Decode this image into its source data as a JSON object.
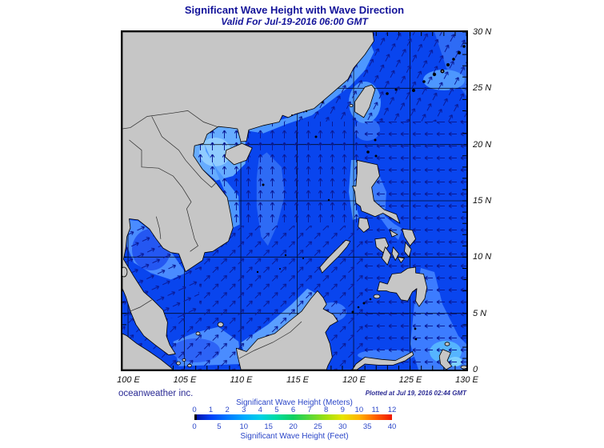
{
  "title": "Significant Wave Height with Wave Direction",
  "subtitle": "Valid For Jul-19-2016 06:00 GMT",
  "map": {
    "lon_labels": [
      "100 E",
      "105 E",
      "110 E",
      "115 E",
      "120 E",
      "125 E",
      "130 E"
    ],
    "lat_labels": [
      "30 N",
      "25 N",
      "20 N",
      "15 N",
      "10 N",
      "5 N",
      "0"
    ]
  },
  "footer": {
    "credit": "oceanweather inc.",
    "plotted": "Plotted at Jul 19, 2016 02:44 GMT"
  },
  "colorbar": {
    "title_meters": "Significant Wave Height (Meters)",
    "title_feet": "Significant Wave Height (Feet)",
    "meters_ticks": [
      "0",
      "1",
      "2",
      "3",
      "4",
      "5",
      "6",
      "7",
      "8",
      "9",
      "10",
      "11",
      "12"
    ],
    "feet_ticks": [
      "0",
      "5",
      "10",
      "15",
      "20",
      "25",
      "30",
      "35",
      "40"
    ],
    "gradient_stops": [
      "#0010a0",
      "#0040f8",
      "#0078ff",
      "#00aaff",
      "#00d0e8",
      "#00dca0",
      "#10d060",
      "#58d838",
      "#a0e010",
      "#e8e400",
      "#ffb400",
      "#ff6000",
      "#f01800"
    ],
    "range_meters": [
      0,
      12
    ],
    "range_feet": [
      0,
      40
    ]
  },
  "colors": {
    "ocean_base": "#0945ee",
    "ocean_light": "#4d97ff",
    "ocean_lighter": "#66acff",
    "ocean_lightest": "#90ccff",
    "land": "#c6c6c6",
    "arrow": "#0a1a96",
    "text_accent": "#2b46c8"
  }
}
